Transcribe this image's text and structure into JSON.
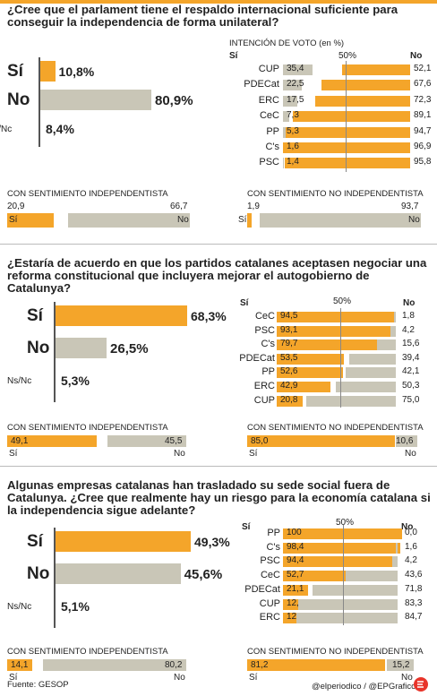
{
  "chart_data": [
    {
      "type": "bar",
      "title": "¿Cree que el parlament tiene el respaldo internacional suficiente para conseguir la independencia de forma unilateral?",
      "overall": {
        "categories": [
          "Sí",
          "No",
          "Ns/Nc"
        ],
        "values": [
          10.8,
          80.9,
          8.4
        ],
        "labels": [
          "10,8%",
          "80,9%",
          "8,4%"
        ]
      },
      "party_title": "INTENCIÓN DE VOTO (en %)",
      "party_mid_label": "50%",
      "party": {
        "categories": [
          "CUP",
          "PDECat",
          "ERC",
          "CeC",
          "PP",
          "C's",
          "PSC"
        ],
        "si": [
          35.4,
          22.5,
          17.5,
          7.3,
          5.3,
          1.6,
          1.4
        ],
        "no": [
          52.1,
          67.6,
          72.3,
          89.1,
          94.7,
          96.9,
          95.8
        ],
        "si_labels": [
          "35,4",
          "22,5",
          "17,5",
          "7,3",
          "5,3",
          "1,6",
          "1,4"
        ],
        "no_labels": [
          "52,1",
          "67,6",
          "72,3",
          "89,1",
          "94,7",
          "96,9",
          "95,8"
        ]
      },
      "independentista": {
        "title": "CON SENTIMIENTO INDEPENDENTISTA",
        "si": 20.9,
        "no": 66.7,
        "si_label": "20,9",
        "no_label": "66,7"
      },
      "no_independentista": {
        "title": "CON SENTIMIENTO NO INDEPENDENTISTA",
        "si": 1.9,
        "no": 93.7,
        "si_label": "1,9",
        "no_label": "93,7"
      },
      "si_word": "Sí",
      "no_word": "No"
    },
    {
      "type": "bar",
      "title": "¿Estaría de acuerdo en que los partidos catalanes aceptasen negociar una reforma constitucional que incluyera mejorar el autogobierno de Catalunya?",
      "overall": {
        "categories": [
          "Sí",
          "No",
          "Ns/Nc"
        ],
        "values": [
          68.3,
          26.5,
          5.3
        ],
        "labels": [
          "68,3%",
          "26,5%",
          "5,3%"
        ]
      },
      "party_head_si": "Sí",
      "party_head_no": "No",
      "party_mid_label": "50%",
      "party": {
        "categories": [
          "CeC",
          "PSC",
          "C's",
          "PDECat",
          "PP",
          "ERC",
          "CUP"
        ],
        "si": [
          94.5,
          93.1,
          79.7,
          53.5,
          52.6,
          42.9,
          20.8
        ],
        "no": [
          1.8,
          4.2,
          15.6,
          39.4,
          42.1,
          50.3,
          75.0
        ],
        "si_labels": [
          "94,5",
          "93,1",
          "79,7",
          "53,5",
          "52,6",
          "42,9",
          "20,8"
        ],
        "no_labels": [
          "1,8",
          "4,2",
          "15,6",
          "39,4",
          "42,1",
          "50,3",
          "75,0"
        ]
      },
      "independentista": {
        "title": "CON SENTIMIENTO INDEPENDENTISTA",
        "si": 49.1,
        "no": 45.5,
        "si_label": "49,1",
        "no_label": "45,5"
      },
      "no_independentista": {
        "title": "CON SENTIMIENTO NO INDEPENDENTISTA",
        "si": 85.0,
        "no": 10.6,
        "si_label": "85,0",
        "no_label": "10,6"
      },
      "si_word": "Sí",
      "no_word": "No"
    },
    {
      "type": "bar",
      "title": "Algunas empresas catalanas han trasladado su sede social fuera de Catalunya. ¿Cree que realmente hay un riesgo para la economía catalana si la independencia sigue adelante?",
      "overall": {
        "categories": [
          "Sí",
          "No",
          "Ns/Nc"
        ],
        "values": [
          49.3,
          45.6,
          5.1
        ],
        "labels": [
          "49,3%",
          "45,6%",
          "5,1%"
        ]
      },
      "party_head_si": "Sí",
      "party_head_no": "No",
      "party_mid_label": "50%",
      "party": {
        "categories": [
          "PP",
          "C's",
          "PSC",
          "CeC",
          "PDECat",
          "CUP",
          "ERC"
        ],
        "si": [
          100,
          98.4,
          94.4,
          52.7,
          21.1,
          12.5,
          12.4
        ],
        "no": [
          0.0,
          1.6,
          4.2,
          43.6,
          71.8,
          83.3,
          84.7
        ],
        "si_labels": [
          "100",
          "98,4",
          "94,4",
          "52,7",
          "21,1",
          "12,5",
          "12,4"
        ],
        "no_labels": [
          "0,0",
          "1,6",
          "4,2",
          "43,6",
          "71,8",
          "83,3",
          "84,7"
        ]
      },
      "independentista": {
        "title": "CON SENTIMIENTO INDEPENDENTISTA",
        "si": 14.1,
        "no": 80.2,
        "si_label": "14,1",
        "no_label": "80,2"
      },
      "no_independentista": {
        "title": "CON SENTIMIENTO NO INDEPENDENTISTA",
        "si": 81.2,
        "no": 15.2,
        "si_label": "81,2",
        "no_label": "15,2"
      },
      "si_word": "Sí",
      "no_word": "No"
    }
  ],
  "footer": {
    "source": "Fuente: GESOP",
    "credit": "@elperiodico / @EPGraficos"
  },
  "colors": {
    "si": "#f4a52a",
    "no": "#c9c6b7",
    "accent": "#e8352b"
  },
  "icons": {
    "logo": "elperiodico-logo-icon"
  }
}
